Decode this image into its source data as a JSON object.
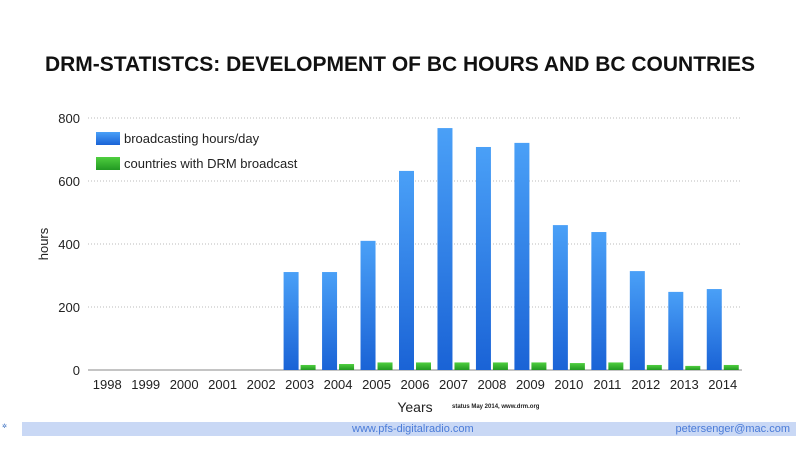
{
  "chart_data": {
    "type": "bar",
    "title": "DRM-STATISTCS: DEVELOPMENT OF BC HOURS AND BC COUNTRIES",
    "xlabel": "Years",
    "ylabel": "hours",
    "ylim": [
      0,
      800
    ],
    "yticks": [
      0,
      200,
      400,
      600,
      800
    ],
    "grid": true,
    "legend_position": "top-left",
    "categories": [
      "1998",
      "1999",
      "2000",
      "2001",
      "2002",
      "2003",
      "2004",
      "2005",
      "2006",
      "2007",
      "2008",
      "2009",
      "2010",
      "2011",
      "2012",
      "2013",
      "2014"
    ],
    "series": [
      {
        "name": "broadcasting hours/day",
        "color": "#2f7ff0",
        "values": [
          0,
          0,
          0,
          0,
          0,
          311,
          311,
          410,
          632,
          768,
          708,
          721,
          460,
          438,
          314,
          248,
          257
        ]
      },
      {
        "name": "countries with DRM broadcast",
        "color": "#2eb82e",
        "values": [
          0,
          0,
          0,
          0,
          0,
          16,
          19,
          24,
          24,
          24,
          24,
          24,
          22,
          24,
          16,
          13,
          16
        ]
      }
    ]
  },
  "annotation": "status May 2014, www.drm.org",
  "footer": {
    "url": "www.pfs-digitalradio.com",
    "email": "petersenger@mac.com",
    "logo": "drm"
  }
}
